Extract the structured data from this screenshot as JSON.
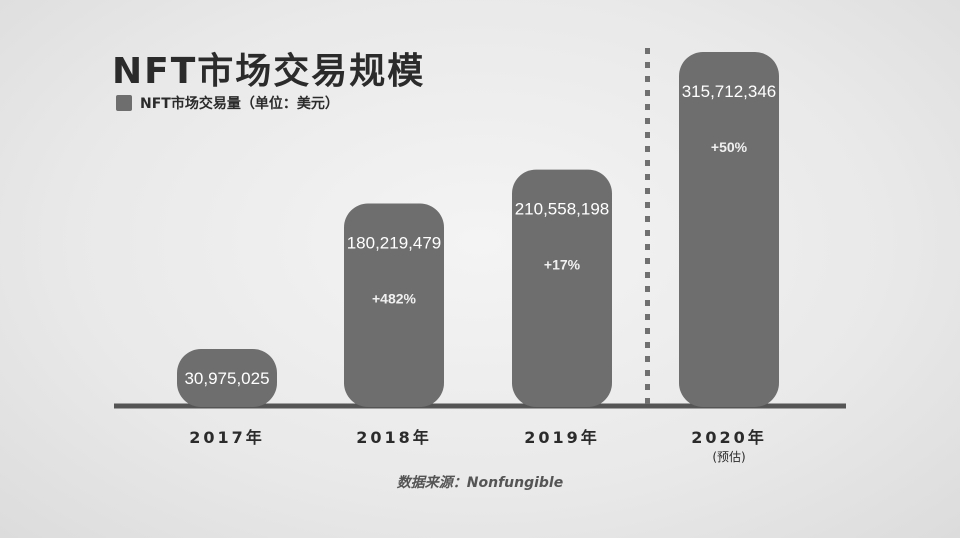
{
  "title": "NFT市场交易规模",
  "legend": {
    "label": "NFT市场交易量（单位：美元）",
    "color": "#6e6e6e"
  },
  "source": "数据来源：Nonfungible",
  "colors": {
    "bar": "#6e6e6e",
    "axis": "#555555",
    "divider": "#707070",
    "text": "#2b2b2b",
    "label_on_bar": "#ffffff"
  },
  "chart_data": {
    "type": "bar",
    "categories": [
      "2017年",
      "2018年",
      "2019年",
      "2020年"
    ],
    "category_notes": [
      "",
      "",
      "",
      "(预估)"
    ],
    "values": [
      30975025,
      180219479,
      210558198,
      315712346
    ],
    "value_labels": [
      "30,975,025",
      "180,219,479",
      "210,558,198",
      "315,712,346"
    ],
    "growth_labels": [
      "",
      "+482%",
      "+17%",
      "+50%"
    ],
    "estimated_from_index": 3,
    "grid": false,
    "legend_position": "top-left",
    "title": "NFT市场交易规模"
  }
}
